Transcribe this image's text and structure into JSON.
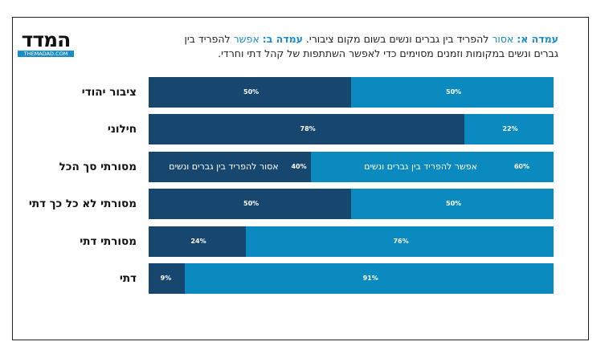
{
  "logo": {
    "word": "המדד",
    "url": "THEMADAD.COM"
  },
  "title": {
    "a_label": "עמדה א:",
    "a_word": "אסור",
    "a_rest": " להפריד בין גברים ונשים בשום מקום ציבורי. ",
    "b_label": "עמדה ב:",
    "b_word": "אפשר",
    "b_rest": " להפריד בין גברים ונשים במקומות וזמנים מסוימים כדי לאפשר השתתפות של קהל דתי וחרדי."
  },
  "colors": {
    "forbid": "#17476f",
    "allow": "#0b8ac0",
    "accent": "#1a8fc7"
  },
  "chart_data": {
    "type": "bar",
    "orientation": "horizontal-stacked-100",
    "categories": [
      "ציבור יהודי",
      "חילוני",
      "מסורתי סך הכל",
      "מסורתי לא כל כך דתי",
      "מסורתי דתי",
      "דתי"
    ],
    "series": [
      {
        "name": "אסור להפריד בין גברים ונשים",
        "values": [
          50,
          78,
          40,
          50,
          24,
          9
        ]
      },
      {
        "name": "אפשר להפריד בין גברים ונשים",
        "values": [
          50,
          22,
          60,
          50,
          76,
          91
        ]
      }
    ],
    "value_suffix": "%",
    "legend_placement": "inside-bar-row-3",
    "grid": false
  }
}
